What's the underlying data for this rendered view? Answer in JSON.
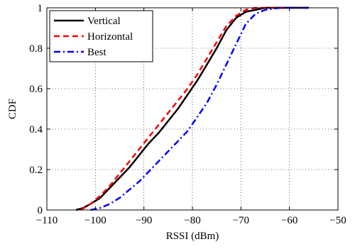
{
  "chart_data": {
    "type": "line",
    "xlabel": "RSSI (dBm)",
    "ylabel": "CDF",
    "xlim": [
      -110,
      -50
    ],
    "ylim": [
      0,
      1
    ],
    "xticks": [
      -110,
      -100,
      -90,
      -80,
      -70,
      -60,
      -50
    ],
    "xtick_labels": [
      "−110",
      "−100",
      "−90",
      "−80",
      "−70",
      "−60",
      "−50"
    ],
    "yticks": [
      0,
      0.2,
      0.4,
      0.6,
      0.8,
      1
    ],
    "ytick_labels": [
      "0",
      "0.2",
      "0.4",
      "0.6",
      "0.8",
      "1"
    ],
    "grid": true,
    "legend_position": "top-left",
    "series": [
      {
        "name": "Vertical",
        "color": "#000000",
        "dash": "solid",
        "x": [
          -104.0,
          -102.5,
          -101.0,
          -99.0,
          -97.0,
          -95.0,
          -93.0,
          -91.0,
          -89.0,
          -87.0,
          -85.0,
          -83.0,
          -81.0,
          -79.0,
          -77.0,
          -75.0,
          -73.0,
          -71.0,
          -69.0,
          -67.0,
          -65.0,
          -63.0,
          -60.0,
          -56.0
        ],
        "y": [
          0.0,
          0.01,
          0.03,
          0.06,
          0.11,
          0.16,
          0.21,
          0.27,
          0.33,
          0.38,
          0.44,
          0.5,
          0.57,
          0.64,
          0.72,
          0.8,
          0.89,
          0.95,
          0.98,
          0.99,
          1.0,
          1.0,
          1.0,
          1.0
        ]
      },
      {
        "name": "Horizontal",
        "color": "#ff0000",
        "dash": "dashed",
        "x": [
          -103.0,
          -101.0,
          -99.0,
          -97.0,
          -95.0,
          -93.0,
          -91.0,
          -89.0,
          -87.0,
          -85.0,
          -83.0,
          -81.0,
          -79.0,
          -77.0,
          -75.0,
          -73.0,
          -71.0,
          -69.0,
          -67.0,
          -65.0,
          -62.0,
          -58.0
        ],
        "y": [
          0.0,
          0.03,
          0.07,
          0.12,
          0.18,
          0.24,
          0.3,
          0.36,
          0.42,
          0.48,
          0.54,
          0.6,
          0.67,
          0.75,
          0.83,
          0.91,
          0.96,
          0.99,
          1.0,
          1.0,
          1.0,
          1.0
        ]
      },
      {
        "name": "Best",
        "color": "#0000ff",
        "dash": "dashdot",
        "x": [
          -101.0,
          -99.0,
          -97.0,
          -95.0,
          -93.0,
          -91.0,
          -89.0,
          -87.0,
          -85.0,
          -83.0,
          -81.0,
          -79.0,
          -77.0,
          -75.0,
          -73.0,
          -71.0,
          -69.0,
          -67.0,
          -65.0,
          -62.0,
          -58.0,
          -56.0
        ],
        "y": [
          0.0,
          0.01,
          0.03,
          0.06,
          0.1,
          0.14,
          0.19,
          0.24,
          0.29,
          0.34,
          0.39,
          0.46,
          0.53,
          0.62,
          0.72,
          0.82,
          0.92,
          0.97,
          0.99,
          1.0,
          1.0,
          1.0
        ]
      }
    ]
  }
}
